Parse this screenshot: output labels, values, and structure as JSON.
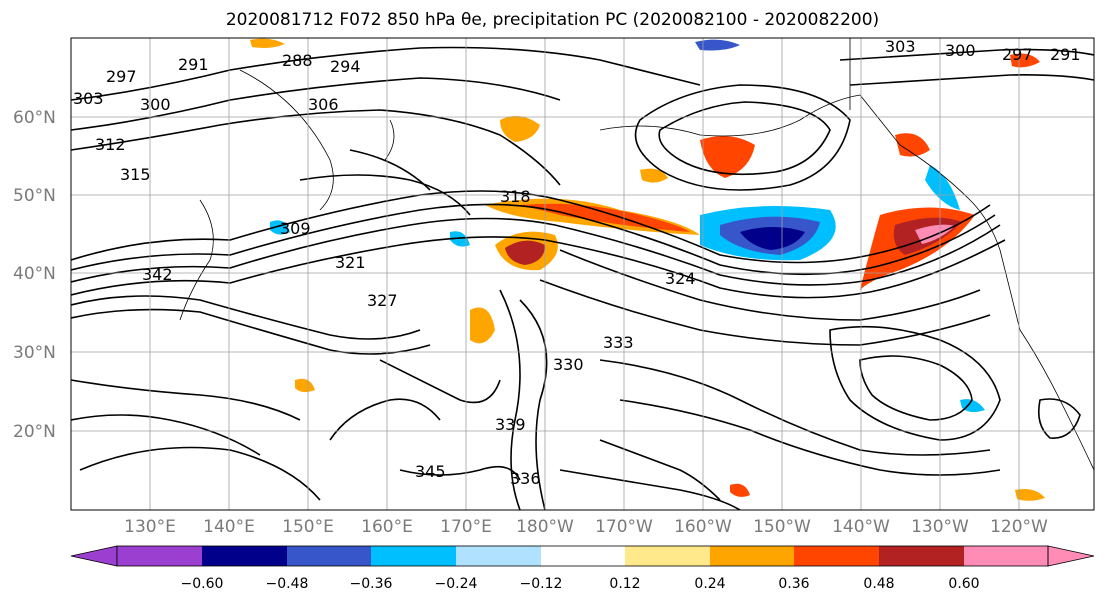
{
  "title": "2020081712 F072 850 hPa θe, precipitation PC (2020082100 - 2020082200)",
  "lat_ticks": [
    "60°N",
    "50°N",
    "40°N",
    "30°N",
    "20°N"
  ],
  "lon_ticks": [
    "130°E",
    "140°E",
    "150°E",
    "160°E",
    "170°E",
    "180°W",
    "170°W",
    "160°W",
    "150°W",
    "140°W",
    "130°W",
    "120°W"
  ],
  "colorbar": {
    "ticks": [
      "−0.60",
      "−0.48",
      "−0.36",
      "−0.24",
      "−0.12",
      "0.12",
      "0.24",
      "0.36",
      "0.48",
      "0.60"
    ],
    "colors": [
      "#9b3fd1",
      "#00008b",
      "#3656c9",
      "#00bfff",
      "#b0e2ff",
      "#ffffff",
      "#ffe98a",
      "#ffa500",
      "#ff4500",
      "#b22222",
      "#ff8cb4"
    ]
  },
  "contour_labels": [
    "291",
    "288",
    "294",
    "297",
    "303",
    "300",
    "306",
    "312",
    "315",
    "309",
    "342",
    "321",
    "327",
    "333",
    "336",
    "330",
    "345",
    "339",
    "318",
    "324",
    "297",
    "291",
    "303",
    "300"
  ],
  "colors": {
    "contour": "#000000",
    "grid": "#a0a0a0",
    "coast": "#000000"
  }
}
